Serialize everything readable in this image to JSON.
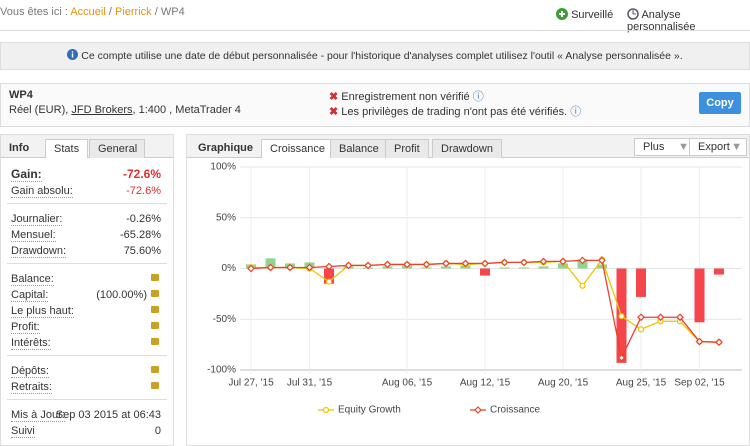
{
  "breadcrumb": {
    "prefix": "Vous êtes ici :",
    "items": [
      "Accueil",
      "Pierrick",
      "WP4"
    ],
    "separator": "/"
  },
  "actions": [
    "Surveillé",
    "Analyse personnalisée"
  ],
  "notice": "Ce compte utilise une date de début personnalisée - pour l'historique d'analyses complet utilisez l'outil « Analyse personnalisée ».",
  "account": {
    "name": "WP4",
    "type": "Réel (EUR),",
    "broker": "JFD Brokers",
    "details": ", 1:400 , MetaTrader 4",
    "warnings": [
      "Enregistrement non vérifié",
      "Les privilèges de trading n'ont pas été vérifiés."
    ],
    "button": "Copy"
  },
  "stats": {
    "tabs": [
      "Info",
      "Stats",
      "General"
    ],
    "groups": [
      [
        {
          "label": "Gain:",
          "value": "-72.6%"
        },
        {
          "label": "Gain absolu:",
          "value": "-72.6%"
        }
      ],
      [
        {
          "label": "Journalier:",
          "value": "-0.26%"
        },
        {
          "label": "Mensuel:",
          "value": "-65.28%"
        },
        {
          "label": "Drawdown:",
          "value": "75.60%"
        }
      ],
      [
        {
          "label": "Balance:",
          "locked": true
        },
        {
          "label": "Capital:",
          "value": "(100.00%)",
          "locked": true
        },
        {
          "label": "Le plus haut:",
          "locked": true
        },
        {
          "label": "Profit:",
          "locked": true
        },
        {
          "label": "Intérêts:",
          "locked": true
        }
      ],
      [
        {
          "label": "Dépôts:",
          "locked": true
        },
        {
          "label": "Retraits:",
          "locked": true
        }
      ],
      [
        {
          "label": "Mis à Jour:",
          "value": "Sep 03 2015 at 06:43"
        },
        {
          "label": "Suivi",
          "value": "0"
        }
      ]
    ]
  },
  "chart_panel": {
    "title": "Graphique",
    "tabs": [
      "Croissance",
      "Balance",
      "Profit",
      "Drawdown"
    ],
    "menus": [
      "Plus",
      "Export"
    ]
  },
  "chart_data": {
    "type": "line",
    "categories": [
      "Jul 27, '15",
      null,
      null,
      "Jul 31, '15",
      null,
      null,
      null,
      null,
      "Aug 06, '15",
      null,
      null,
      null,
      "Aug 12, '15",
      null,
      null,
      null,
      "Aug 20, '15",
      null,
      null,
      null,
      "Aug 25, '15",
      null,
      null,
      "Sep 02, '15",
      null
    ],
    "series": [
      {
        "name": "Equity Growth",
        "color": "#f2c200",
        "marker": "circle",
        "values": [
          1,
          1,
          1,
          0,
          -13,
          3,
          3,
          4,
          4,
          4,
          5,
          4,
          5,
          6,
          6,
          6,
          7,
          -17,
          9,
          -47,
          -60,
          -52,
          -52,
          -72,
          -72.6
        ]
      },
      {
        "name": "Croissance",
        "color": "#e8412c",
        "marker": "diamond",
        "values": [
          0,
          1,
          1,
          1,
          2,
          3,
          3,
          4,
          4,
          4,
          5,
          5,
          5,
          6,
          6,
          7,
          7,
          8,
          8,
          -88,
          -48,
          -48,
          -48,
          -72,
          -72.6
        ]
      }
    ],
    "bars": {
      "positive_color": "#8fd48f",
      "negative_color": "#f5464b",
      "values": [
        4,
        10,
        5,
        6,
        -15,
        2,
        1,
        2,
        3,
        1,
        2,
        3,
        -7,
        1,
        1,
        2,
        5,
        9,
        4,
        -93,
        -28,
        0,
        0,
        -53,
        -6
      ]
    },
    "ylim": [
      -100,
      100
    ],
    "yticks": [
      {
        "value": -100,
        "label": "-100%"
      },
      {
        "value": -50,
        "label": "-50%"
      },
      {
        "value": 0,
        "label": "0%"
      },
      {
        "value": 50,
        "label": "50%"
      },
      {
        "value": 100,
        "label": "100%"
      }
    ],
    "grid": true
  }
}
